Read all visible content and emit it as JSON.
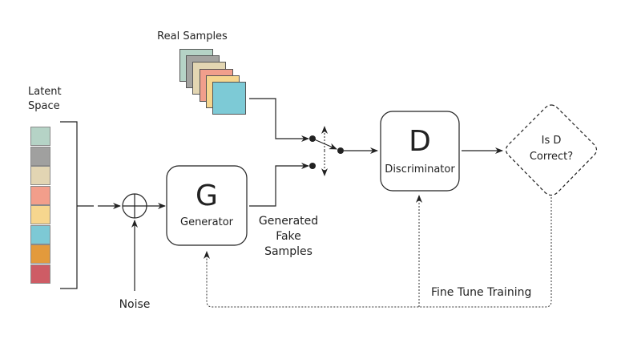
{
  "labels": {
    "latent_space": [
      "Latent",
      "Space"
    ],
    "real_samples": "Real Samples",
    "noise": "Noise",
    "generated_fake_samples": [
      "Generated",
      "Fake",
      "Samples"
    ],
    "fine_tune_training": "Fine Tune Training"
  },
  "generator": {
    "letter": "G",
    "label": "Generator"
  },
  "discriminator": {
    "letter": "D",
    "label": "Discriminator"
  },
  "decision": {
    "lines": [
      "Is D",
      "Correct?"
    ]
  },
  "colors": {
    "latent_cells": [
      "#b5d3c6",
      "#a0a09f",
      "#e2d5b3",
      "#f29e8b",
      "#f6d68e",
      "#7dc9d5",
      "#e39a3c",
      "#ce5c65"
    ],
    "real_samples": [
      "#b5d3c6",
      "#a3a3a0",
      "#e3d6b2",
      "#f19f8c",
      "#f6d68e",
      "#7dcad6"
    ],
    "line": "#222222"
  }
}
